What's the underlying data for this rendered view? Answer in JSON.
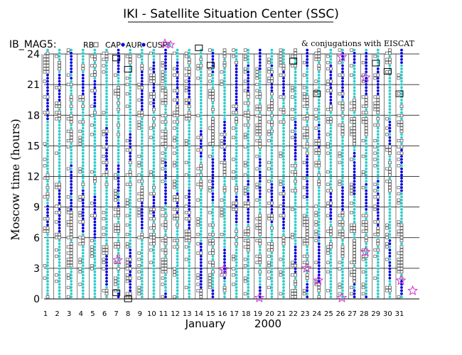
{
  "page": {
    "title": "IKI - Satellite Situation Center (SSC)"
  },
  "chart_data": {
    "type": "scatter",
    "title": "IKI - Satellite Situation Center (SSC)",
    "series_label": "IB_MAG5:",
    "legend": [
      {
        "name": "RB",
        "marker": "open-square",
        "color": "#555555"
      },
      {
        "name": "CAP",
        "marker": "filled-circle",
        "color": "#0000dd"
      },
      {
        "name": "AUR",
        "marker": "filled-circle",
        "color": "#0000dd"
      },
      {
        "name": "CUSP",
        "marker": "filled-circle",
        "color": "#33cccc"
      }
    ],
    "legend_star_color": "#cc33cc",
    "conjugation_note": "& conjugations with EISCAT",
    "ylabel": "Moscow time (hours)",
    "xlabel": "January",
    "year": "2000",
    "xlim": [
      1,
      31
    ],
    "ylim": [
      0,
      24
    ],
    "x_ticks": [
      1,
      2,
      3,
      4,
      5,
      6,
      7,
      8,
      9,
      10,
      11,
      12,
      13,
      14,
      15,
      16,
      17,
      18,
      19,
      20,
      21,
      22,
      23,
      24,
      25,
      26,
      27,
      28,
      29,
      30,
      31
    ],
    "y_ticks": [
      0,
      3,
      6,
      9,
      12,
      15,
      18,
      21,
      24
    ],
    "grid": "horizontal",
    "colors": {
      "rb": "#555555",
      "aur": "#0000dd",
      "cusp": "#33cccc",
      "star": "#cc33cc",
      "axis": "#000000"
    },
    "eiscat_conjugations": [
      {
        "day": 7,
        "hour": 3.8
      },
      {
        "day": 11,
        "hour": 25.0
      },
      {
        "day": 16,
        "hour": 2.9
      },
      {
        "day": 19,
        "hour": 0.1
      },
      {
        "day": 23,
        "hour": 3.0
      },
      {
        "day": 24,
        "hour": 1.8
      },
      {
        "day": 26,
        "hour": 0.1
      },
      {
        "day": 26,
        "hour": 23.7
      },
      {
        "day": 28,
        "hour": 4.6
      },
      {
        "day": 28,
        "hour": 21.7
      },
      {
        "day": 31,
        "hour": 1.8
      },
      {
        "day": 32,
        "hour": 0.8
      }
    ],
    "box_markers": [
      {
        "day": 7,
        "hour": 23.6
      },
      {
        "day": 7,
        "hour": 0.6
      },
      {
        "day": 8,
        "hour": 22.5
      },
      {
        "day": 8,
        "hour": 0.0
      },
      {
        "day": 14,
        "hour": 24.6
      },
      {
        "day": 15,
        "hour": 22.9
      },
      {
        "day": 22,
        "hour": 23.3
      },
      {
        "day": 24,
        "hour": 20.1
      },
      {
        "day": 29,
        "hour": 23.1
      },
      {
        "day": 30,
        "hour": 22.3
      },
      {
        "day": 31,
        "hour": 20.1
      }
    ]
  }
}
